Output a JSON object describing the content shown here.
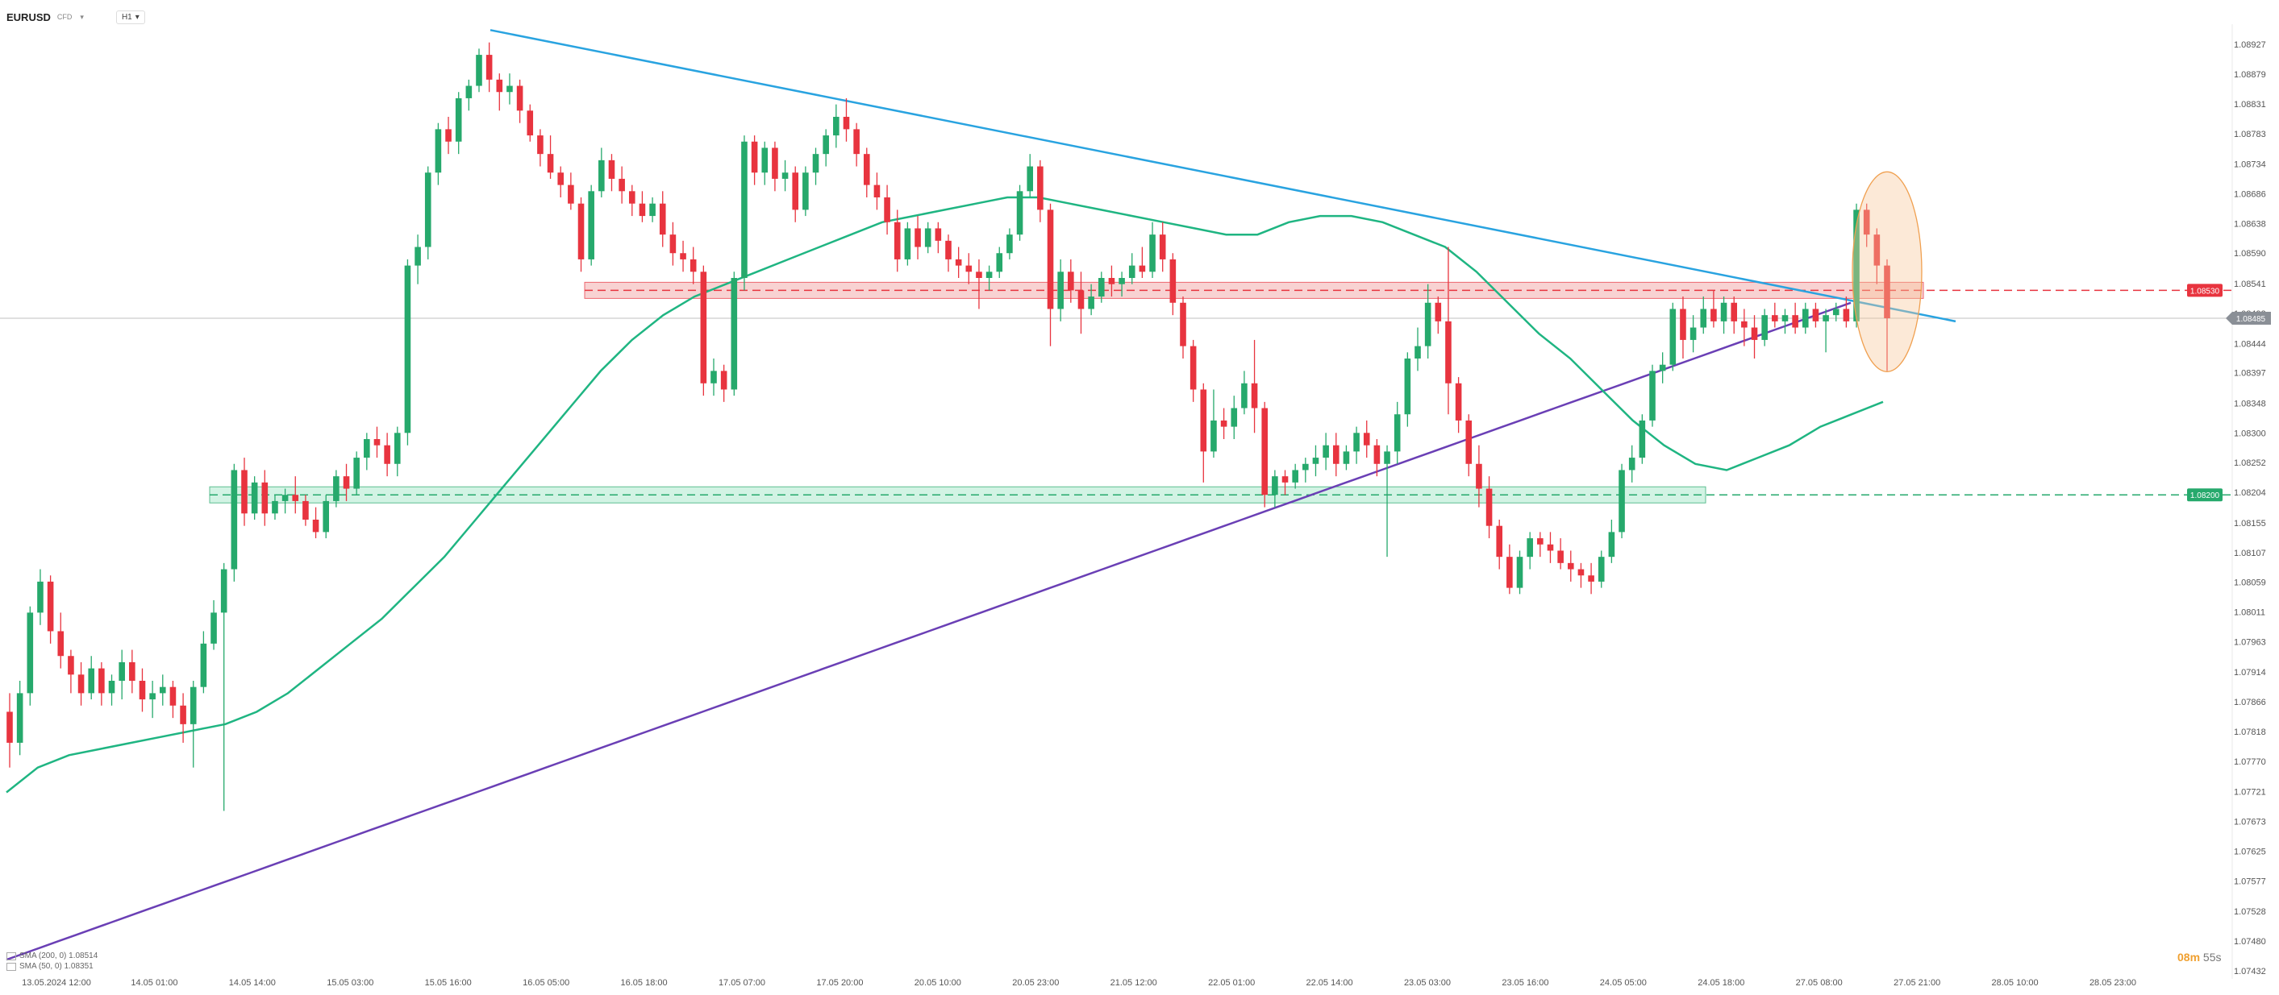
{
  "header": {
    "symbol": "EURUSD",
    "symbol_sub": "CFD",
    "symbol_dropdown": "▾",
    "timeframe": "H1",
    "timeframe_dropdown": "▾"
  },
  "legend": [
    {
      "label": "SMA (200, 0) 1.08514"
    },
    {
      "label": "SMA (50, 0) 1.08351"
    }
  ],
  "countdown": {
    "minutes": "08m",
    "seconds": "55s"
  },
  "colors": {
    "bull": "#26a96c",
    "bear": "#e8343f",
    "sma200": "#6a3fb5",
    "sma50": "#1fb582",
    "trendline": "#29a3e0",
    "resistance_zone": "#f6c4c4",
    "support_zone": "#c4efdc",
    "highlight_ellipse": "#f7c99a",
    "grid_price_line": "#bfbfbf"
  },
  "chart_data": {
    "type": "candlestick",
    "instrument": "EURUSD",
    "timeframe": "H1",
    "y_ticks": [
      "1.08927",
      "1.08879",
      "1.08831",
      "1.08783",
      "1.08734",
      "1.08686",
      "1.08638",
      "1.08590",
      "1.08541",
      "1.08493",
      "1.08444",
      "1.08397",
      "1.08348",
      "1.08300",
      "1.08252",
      "1.08204",
      "1.08155",
      "1.08107",
      "1.08059",
      "1.08011",
      "1.07963",
      "1.07914",
      "1.07866",
      "1.07818",
      "1.07770",
      "1.07721",
      "1.07673",
      "1.07625",
      "1.07577",
      "1.07528",
      "1.07480",
      "1.07432"
    ],
    "ylim": [
      1.07432,
      1.08927
    ],
    "x_ticks": [
      "13.05.2024 12:00",
      "14.05 01:00",
      "14.05 14:00",
      "15.05 03:00",
      "15.05 16:00",
      "16.05 05:00",
      "16.05 18:00",
      "17.05 07:00",
      "17.05 20:00",
      "20.05 10:00",
      "20.05 23:00",
      "21.05 12:00",
      "22.05 01:00",
      "22.05 14:00",
      "23.05 03:00",
      "23.05 16:00",
      "24.05 05:00",
      "24.05 18:00",
      "27.05 08:00",
      "27.05 21:00",
      "28.05 10:00",
      "28.05 23:00"
    ],
    "current_price": "1.08485",
    "resistance_level": {
      "value": "1.08530",
      "label": "1.08530"
    },
    "support_level": {
      "value": "1.08200",
      "label": "1.08200"
    },
    "candles": [
      [
        1.0785,
        1.0788,
        1.0776,
        1.078
      ],
      [
        1.078,
        1.079,
        1.0778,
        1.0788
      ],
      [
        1.0788,
        1.0802,
        1.0786,
        1.0801
      ],
      [
        1.0801,
        1.0808,
        1.0799,
        1.0806
      ],
      [
        1.0806,
        1.0807,
        1.0796,
        1.0798
      ],
      [
        1.0798,
        1.0801,
        1.0792,
        1.0794
      ],
      [
        1.0794,
        1.0795,
        1.0788,
        1.0791
      ],
      [
        1.0791,
        1.0793,
        1.0786,
        1.0788
      ],
      [
        1.0788,
        1.0794,
        1.0787,
        1.0792
      ],
      [
        1.0792,
        1.0793,
        1.0786,
        1.0788
      ],
      [
        1.0788,
        1.0791,
        1.0786,
        1.079
      ],
      [
        1.079,
        1.0795,
        1.0787,
        1.0793
      ],
      [
        1.0793,
        1.0795,
        1.0788,
        1.079
      ],
      [
        1.079,
        1.0792,
        1.0785,
        1.0787
      ],
      [
        1.0787,
        1.079,
        1.0784,
        1.0788
      ],
      [
        1.0788,
        1.0791,
        1.0786,
        1.0789
      ],
      [
        1.0789,
        1.079,
        1.0784,
        1.0786
      ],
      [
        1.0786,
        1.0788,
        1.078,
        1.0783
      ],
      [
        1.0783,
        1.079,
        1.0776,
        1.0789
      ],
      [
        1.0789,
        1.0798,
        1.0788,
        1.0796
      ],
      [
        1.0796,
        1.0803,
        1.0795,
        1.0801
      ],
      [
        1.0801,
        1.0809,
        1.0769,
        1.0808
      ],
      [
        1.0808,
        1.0825,
        1.0806,
        1.0824
      ],
      [
        1.0824,
        1.0826,
        1.0815,
        1.0817
      ],
      [
        1.0817,
        1.0823,
        1.0816,
        1.0822
      ],
      [
        1.0822,
        1.0824,
        1.0815,
        1.0817
      ],
      [
        1.0817,
        1.082,
        1.0816,
        1.0819
      ],
      [
        1.0819,
        1.0821,
        1.0817,
        1.082
      ],
      [
        1.082,
        1.0823,
        1.0817,
        1.0819
      ],
      [
        1.0819,
        1.082,
        1.0815,
        1.0816
      ],
      [
        1.0816,
        1.0818,
        1.0813,
        1.0814
      ],
      [
        1.0814,
        1.082,
        1.0813,
        1.0819
      ],
      [
        1.0819,
        1.0824,
        1.0818,
        1.0823
      ],
      [
        1.0823,
        1.0825,
        1.0819,
        1.0821
      ],
      [
        1.0821,
        1.0827,
        1.082,
        1.0826
      ],
      [
        1.0826,
        1.083,
        1.0824,
        1.0829
      ],
      [
        1.0829,
        1.0831,
        1.0826,
        1.0828
      ],
      [
        1.0828,
        1.083,
        1.0823,
        1.0825
      ],
      [
        1.0825,
        1.0831,
        1.0823,
        1.083
      ],
      [
        1.083,
        1.0858,
        1.0828,
        1.0857
      ],
      [
        1.0857,
        1.0862,
        1.0854,
        1.086
      ],
      [
        1.086,
        1.0873,
        1.0858,
        1.0872
      ],
      [
        1.0872,
        1.088,
        1.087,
        1.0879
      ],
      [
        1.0879,
        1.0881,
        1.0875,
        1.0877
      ],
      [
        1.0877,
        1.0885,
        1.0875,
        1.0884
      ],
      [
        1.0884,
        1.0887,
        1.0882,
        1.0886
      ],
      [
        1.0886,
        1.0892,
        1.0885,
        1.0891
      ],
      [
        1.0891,
        1.0893,
        1.0885,
        1.0887
      ],
      [
        1.0887,
        1.0888,
        1.0882,
        1.0885
      ],
      [
        1.0885,
        1.0888,
        1.0883,
        1.0886
      ],
      [
        1.0886,
        1.0887,
        1.088,
        1.0882
      ],
      [
        1.0882,
        1.0883,
        1.0877,
        1.0878
      ],
      [
        1.0878,
        1.0879,
        1.0873,
        1.0875
      ],
      [
        1.0875,
        1.0878,
        1.0871,
        1.0872
      ],
      [
        1.0872,
        1.0873,
        1.0868,
        1.087
      ],
      [
        1.087,
        1.0872,
        1.0866,
        1.0867
      ],
      [
        1.0867,
        1.0868,
        1.0856,
        1.0858
      ],
      [
        1.0858,
        1.087,
        1.0857,
        1.0869
      ],
      [
        1.0869,
        1.0876,
        1.0868,
        1.0874
      ],
      [
        1.0874,
        1.0875,
        1.0869,
        1.0871
      ],
      [
        1.0871,
        1.0873,
        1.0867,
        1.0869
      ],
      [
        1.0869,
        1.087,
        1.0865,
        1.0867
      ],
      [
        1.0867,
        1.0869,
        1.0864,
        1.0865
      ],
      [
        1.0865,
        1.0868,
        1.0864,
        1.0867
      ],
      [
        1.0867,
        1.0869,
        1.086,
        1.0862
      ],
      [
        1.0862,
        1.0864,
        1.0857,
        1.0859
      ],
      [
        1.0859,
        1.0861,
        1.0856,
        1.0858
      ],
      [
        1.0858,
        1.086,
        1.0854,
        1.0856
      ],
      [
        1.0856,
        1.0857,
        1.0836,
        1.0838
      ],
      [
        1.0838,
        1.0842,
        1.0836,
        1.084
      ],
      [
        1.084,
        1.0841,
        1.0835,
        1.0837
      ],
      [
        1.0837,
        1.0856,
        1.0836,
        1.0855
      ],
      [
        1.0855,
        1.0878,
        1.0853,
        1.0877
      ],
      [
        1.0877,
        1.0878,
        1.087,
        1.0872
      ],
      [
        1.0872,
        1.0877,
        1.087,
        1.0876
      ],
      [
        1.0876,
        1.0877,
        1.0869,
        1.0871
      ],
      [
        1.0871,
        1.0874,
        1.0869,
        1.0872
      ],
      [
        1.0872,
        1.0873,
        1.0864,
        1.0866
      ],
      [
        1.0866,
        1.0873,
        1.0865,
        1.0872
      ],
      [
        1.0872,
        1.0876,
        1.087,
        1.0875
      ],
      [
        1.0875,
        1.0879,
        1.0873,
        1.0878
      ],
      [
        1.0878,
        1.0883,
        1.0876,
        1.0881
      ],
      [
        1.0881,
        1.0884,
        1.0877,
        1.0879
      ],
      [
        1.0879,
        1.088,
        1.0873,
        1.0875
      ],
      [
        1.0875,
        1.0876,
        1.0868,
        1.087
      ],
      [
        1.087,
        1.0872,
        1.0866,
        1.0868
      ],
      [
        1.0868,
        1.087,
        1.0862,
        1.0864
      ],
      [
        1.0864,
        1.0866,
        1.0856,
        1.0858
      ],
      [
        1.0858,
        1.0864,
        1.0857,
        1.0863
      ],
      [
        1.0863,
        1.0865,
        1.0858,
        1.086
      ],
      [
        1.086,
        1.0864,
        1.0859,
        1.0863
      ],
      [
        1.0863,
        1.0864,
        1.0859,
        1.0861
      ],
      [
        1.0861,
        1.0862,
        1.0856,
        1.0858
      ],
      [
        1.0858,
        1.086,
        1.0855,
        1.0857
      ],
      [
        1.0857,
        1.0859,
        1.0854,
        1.0856
      ],
      [
        1.0856,
        1.0858,
        1.085,
        1.0855
      ],
      [
        1.0855,
        1.0857,
        1.0853,
        1.0856
      ],
      [
        1.0856,
        1.086,
        1.0855,
        1.0859
      ],
      [
        1.0859,
        1.0863,
        1.0858,
        1.0862
      ],
      [
        1.0862,
        1.087,
        1.0861,
        1.0869
      ],
      [
        1.0869,
        1.0875,
        1.0868,
        1.0873
      ],
      [
        1.0873,
        1.0874,
        1.0864,
        1.0866
      ],
      [
        1.0866,
        1.0867,
        1.0844,
        1.085
      ],
      [
        1.085,
        1.0858,
        1.0848,
        1.0856
      ],
      [
        1.0856,
        1.0858,
        1.0851,
        1.0853
      ],
      [
        1.0853,
        1.0856,
        1.0846,
        1.085
      ],
      [
        1.085,
        1.0854,
        1.0849,
        1.0852
      ],
      [
        1.0852,
        1.0856,
        1.0851,
        1.0855
      ],
      [
        1.0855,
        1.0857,
        1.0852,
        1.0854
      ],
      [
        1.0854,
        1.0856,
        1.0852,
        1.0855
      ],
      [
        1.0855,
        1.0859,
        1.0854,
        1.0857
      ],
      [
        1.0857,
        1.086,
        1.0855,
        1.0856
      ],
      [
        1.0856,
        1.0864,
        1.0855,
        1.0862
      ],
      [
        1.0862,
        1.0864,
        1.0856,
        1.0858
      ],
      [
        1.0858,
        1.0859,
        1.0849,
        1.0851
      ],
      [
        1.0851,
        1.0852,
        1.0842,
        1.0844
      ],
      [
        1.0844,
        1.0845,
        1.0835,
        1.0837
      ],
      [
        1.0837,
        1.0838,
        1.0822,
        1.0827
      ],
      [
        1.0827,
        1.0837,
        1.0826,
        1.0832
      ],
      [
        1.0832,
        1.0834,
        1.0829,
        1.0831
      ],
      [
        1.0831,
        1.0836,
        1.0829,
        1.0834
      ],
      [
        1.0834,
        1.084,
        1.0833,
        1.0838
      ],
      [
        1.0838,
        1.0845,
        1.083,
        1.0834
      ],
      [
        1.0834,
        1.0835,
        1.0818,
        1.082
      ],
      [
        1.082,
        1.0824,
        1.0818,
        1.0823
      ],
      [
        1.0823,
        1.0824,
        1.082,
        1.0822
      ],
      [
        1.0822,
        1.0825,
        1.0821,
        1.0824
      ],
      [
        1.0824,
        1.0826,
        1.0822,
        1.0825
      ],
      [
        1.0825,
        1.0828,
        1.0823,
        1.0826
      ],
      [
        1.0826,
        1.083,
        1.0824,
        1.0828
      ],
      [
        1.0828,
        1.083,
        1.0823,
        1.0825
      ],
      [
        1.0825,
        1.0828,
        1.0824,
        1.0827
      ],
      [
        1.0827,
        1.0831,
        1.0825,
        1.083
      ],
      [
        1.083,
        1.0832,
        1.0826,
        1.0828
      ],
      [
        1.0828,
        1.0829,
        1.0823,
        1.0825
      ],
      [
        1.0825,
        1.0828,
        1.081,
        1.0827
      ],
      [
        1.0827,
        1.0835,
        1.0825,
        1.0833
      ],
      [
        1.0833,
        1.0843,
        1.0831,
        1.0842
      ],
      [
        1.0842,
        1.0847,
        1.084,
        1.0844
      ],
      [
        1.0844,
        1.0854,
        1.0842,
        1.0851
      ],
      [
        1.0851,
        1.0852,
        1.0846,
        1.0848
      ],
      [
        1.0848,
        1.086,
        1.0833,
        1.0838
      ],
      [
        1.0838,
        1.0839,
        1.083,
        1.0832
      ],
      [
        1.0832,
        1.0833,
        1.0823,
        1.0825
      ],
      [
        1.0825,
        1.0828,
        1.0818,
        1.0821
      ],
      [
        1.0821,
        1.0823,
        1.0813,
        1.0815
      ],
      [
        1.0815,
        1.0816,
        1.0808,
        1.081
      ],
      [
        1.081,
        1.0812,
        1.0804,
        1.0805
      ],
      [
        1.0805,
        1.0811,
        1.0804,
        1.081
      ],
      [
        1.081,
        1.0814,
        1.0808,
        1.0813
      ],
      [
        1.0813,
        1.0814,
        1.081,
        1.0812
      ],
      [
        1.0812,
        1.0814,
        1.0809,
        1.0811
      ],
      [
        1.0811,
        1.0813,
        1.0808,
        1.0809
      ],
      [
        1.0809,
        1.0811,
        1.0806,
        1.0808
      ],
      [
        1.0808,
        1.0809,
        1.0805,
        1.0807
      ],
      [
        1.0807,
        1.0809,
        1.0804,
        1.0806
      ],
      [
        1.0806,
        1.0811,
        1.0805,
        1.081
      ],
      [
        1.081,
        1.0816,
        1.0809,
        1.0814
      ],
      [
        1.0814,
        1.0825,
        1.0813,
        1.0824
      ],
      [
        1.0824,
        1.0828,
        1.0822,
        1.0826
      ],
      [
        1.0826,
        1.0833,
        1.0825,
        1.0832
      ],
      [
        1.0832,
        1.0841,
        1.0831,
        1.084
      ],
      [
        1.084,
        1.0843,
        1.0838,
        1.0841
      ],
      [
        1.0841,
        1.0851,
        1.084,
        1.085
      ],
      [
        1.085,
        1.0852,
        1.0842,
        1.0845
      ],
      [
        1.0845,
        1.0849,
        1.0843,
        1.0847
      ],
      [
        1.0847,
        1.0852,
        1.0846,
        1.085
      ],
      [
        1.085,
        1.0853,
        1.0847,
        1.0848
      ],
      [
        1.0848,
        1.0852,
        1.0846,
        1.0851
      ],
      [
        1.0851,
        1.0852,
        1.0846,
        1.0848
      ],
      [
        1.0848,
        1.085,
        1.0844,
        1.0847
      ],
      [
        1.0847,
        1.0849,
        1.0842,
        1.0845
      ],
      [
        1.0845,
        1.085,
        1.0844,
        1.0849
      ],
      [
        1.0849,
        1.0851,
        1.0847,
        1.0848
      ],
      [
        1.0848,
        1.085,
        1.0846,
        1.0849
      ],
      [
        1.0849,
        1.0851,
        1.0846,
        1.0847
      ],
      [
        1.0847,
        1.0851,
        1.0846,
        1.085
      ],
      [
        1.085,
        1.0851,
        1.0847,
        1.0848
      ],
      [
        1.0848,
        1.085,
        1.0843,
        1.0849
      ],
      [
        1.0849,
        1.0851,
        1.0848,
        1.085
      ],
      [
        1.085,
        1.0852,
        1.0847,
        1.0848
      ],
      [
        1.0848,
        1.0867,
        1.0847,
        1.0866
      ],
      [
        1.0866,
        1.0867,
        1.086,
        1.0862
      ],
      [
        1.0862,
        1.0863,
        1.0854,
        1.0857
      ],
      [
        1.0857,
        1.0858,
        1.084,
        1.08485
      ]
    ],
    "sma200": [
      1.0745,
      1.0746,
      1.0747,
      1.0748,
      1.0749,
      1.075,
      1.0751,
      1.0752,
      1.0753,
      1.0754,
      1.0755,
      1.0756,
      1.0757,
      1.0758,
      1.0759,
      1.076,
      1.0761,
      1.0762,
      1.0763,
      1.0764,
      1.0765,
      1.0766,
      1.0767,
      1.0768,
      1.0769,
      1.077,
      1.0771,
      1.0772,
      1.0773,
      1.0774,
      1.0775,
      1.0776,
      1.0777,
      1.0778,
      1.0779,
      1.078,
      1.0781,
      1.0782,
      1.0783,
      1.0784,
      1.0785,
      1.0786,
      1.0787,
      1.0788,
      1.0789,
      1.079,
      1.0791,
      1.0792,
      1.0793,
      1.0794,
      1.0795,
      1.0796,
      1.0797,
      1.0798,
      1.0799,
      1.08,
      1.0801,
      1.0802,
      1.0803,
      1.0804,
      1.0805,
      1.0806,
      1.0807,
      1.0808,
      1.0809,
      1.081,
      1.0811,
      1.0812,
      1.0813,
      1.0814,
      1.0815,
      1.0816,
      1.0817,
      1.0818,
      1.0819,
      1.082,
      1.0821,
      1.0822,
      1.0823,
      1.0824,
      1.0825,
      1.0826,
      1.0827,
      1.0828,
      1.0829,
      1.083,
      1.0831,
      1.0832,
      1.0833,
      1.0834,
      1.0835,
      1.0836,
      1.0837,
      1.0838,
      1.0839,
      1.084,
      1.0841,
      1.0842,
      1.0843,
      1.0844,
      1.0845,
      1.0846,
      1.0847,
      1.0848,
      1.0849,
      1.085,
      1.0851
    ],
    "sma50": [
      1.0772,
      1.0776,
      1.0778,
      1.0779,
      1.078,
      1.0781,
      1.0782,
      1.0783,
      1.0785,
      1.0788,
      1.0792,
      1.0796,
      1.08,
      1.0805,
      1.081,
      1.0816,
      1.0822,
      1.0828,
      1.0834,
      1.084,
      1.0845,
      1.0849,
      1.0852,
      1.0854,
      1.0856,
      1.0858,
      1.086,
      1.0862,
      1.0864,
      1.0865,
      1.0866,
      1.0867,
      1.0868,
      1.0868,
      1.0867,
      1.0866,
      1.0865,
      1.0864,
      1.0863,
      1.0862,
      1.0862,
      1.0864,
      1.0865,
      1.0865,
      1.0864,
      1.0862,
      1.086,
      1.0856,
      1.0851,
      1.0846,
      1.0842,
      1.0837,
      1.0832,
      1.0828,
      1.0825,
      1.0824,
      1.0826,
      1.0828,
      1.0831,
      1.0833,
      1.0835
    ]
  }
}
